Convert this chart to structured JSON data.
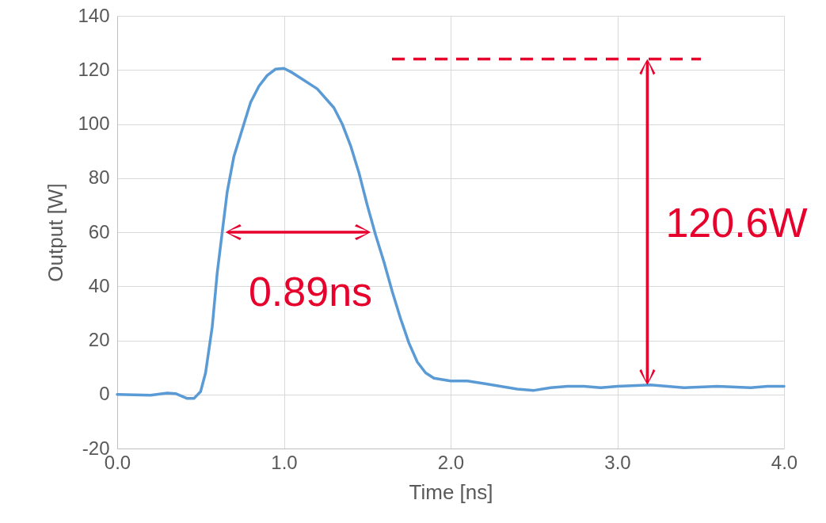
{
  "chart_data": {
    "type": "line",
    "xlabel": "Time [ns]",
    "ylabel": "Output [W]",
    "x": [
      0,
      0.2,
      0.3,
      0.35,
      0.42,
      0.46,
      0.5,
      0.53,
      0.57,
      0.6,
      0.63,
      0.66,
      0.7,
      0.75,
      0.8,
      0.85,
      0.9,
      0.95,
      1.0,
      1.05,
      1.1,
      1.2,
      1.3,
      1.35,
      1.4,
      1.45,
      1.5,
      1.55,
      1.6,
      1.65,
      1.7,
      1.75,
      1.8,
      1.85,
      1.9,
      2.0,
      2.1,
      2.2,
      2.3,
      2.4,
      2.5,
      2.6,
      2.7,
      2.8,
      2.9,
      3.0,
      3.2,
      3.4,
      3.6,
      3.8,
      3.9,
      4.0
    ],
    "series": [
      {
        "color": "#5b9bd5",
        "values": [
          0,
          -0.3,
          0.5,
          0.3,
          -1.5,
          -1.5,
          1,
          8,
          25,
          45,
          60,
          75,
          88,
          98,
          108,
          114,
          118,
          120.3,
          120.6,
          119,
          117,
          113,
          106,
          100,
          92,
          82,
          70,
          59,
          49,
          38,
          28,
          19,
          12,
          8,
          6,
          5,
          5,
          4,
          3,
          2,
          1.5,
          2.5,
          3,
          3,
          2.5,
          3,
          3.5,
          2.5,
          3,
          2.5,
          3,
          3
        ]
      }
    ],
    "xlim": [
      0,
      4
    ],
    "xticks": [
      {
        "value": 0,
        "label": "0.0"
      },
      {
        "value": 1,
        "label": "1.0"
      },
      {
        "value": 2,
        "label": "2.0"
      },
      {
        "value": 3,
        "label": "3.0"
      },
      {
        "value": 4,
        "label": "4.0"
      }
    ],
    "ylim": [
      -20,
      140
    ],
    "yticks": [
      -20,
      0,
      20,
      40,
      60,
      80,
      100,
      120,
      140
    ],
    "grid": true,
    "marker": "none",
    "line_style": "solid",
    "ref_lines": [
      {
        "axis": "y",
        "value": 124,
        "color": "#e8002d",
        "line_style": "dashed"
      }
    ],
    "annotations": [
      "0.89ns",
      "120.6W"
    ]
  }
}
